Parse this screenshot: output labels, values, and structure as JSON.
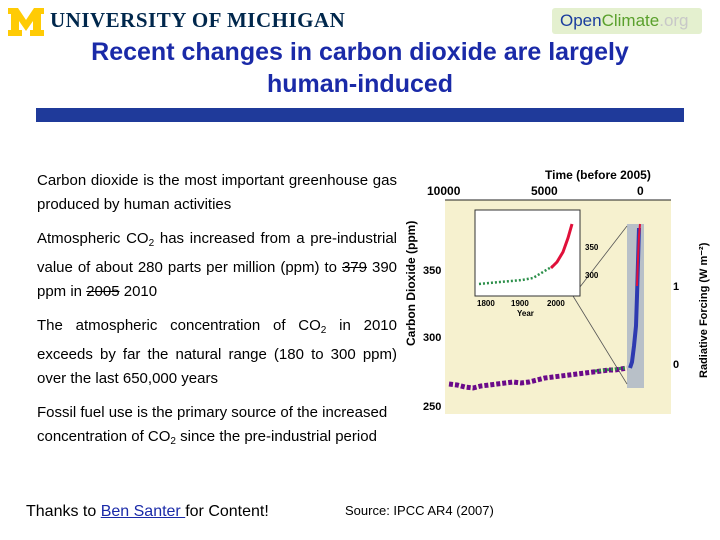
{
  "header": {
    "university": "UNIVERSITY OF MICHIGAN",
    "logo_letter": "M",
    "openclimate_a": "Open",
    "openclimate_b": "Climate",
    "openclimate_c": ".org"
  },
  "title": {
    "line1": "Recent changes in carbon dioxide are largely",
    "line2": "human-induced"
  },
  "bullets": {
    "b1": "Carbon dioxide is the most important greenhouse gas produced by human activities",
    "b2_pre": "Atmospheric CO",
    "b2_sub": "2",
    "b2_mid": " has increased from a pre-industrial value of about 280 parts per million (ppm) to ",
    "b2_strike1": "379",
    "b2_val1": " 390 ppm in ",
    "b2_strike2": "2005",
    "b2_val2": " 2010",
    "b3_pre": "The atmospheric concentration of CO",
    "b3_sub": "2",
    "b3_post": " in 2010 exceeds by far the natural range (180 to 300 ppm) over the last 650,000 years",
    "b4_pre": "Fossil fuel use is the primary source of the increased concentration of CO",
    "b4_sub": "2",
    "b4_post": " since the pre-industrial period"
  },
  "footer": {
    "thanks_pre": "Thanks to ",
    "thanks_link": "Ben Santer ",
    "thanks_post": "for Content!",
    "source": "Source: IPCC AR4 (2007)"
  },
  "chart": {
    "top_axis_label": "Time (before 2005)",
    "top_ticks": [
      "10000",
      "5000",
      "0"
    ],
    "left_label": "Carbon Dioxide (ppm)",
    "left_ticks": [
      "350",
      "300",
      "250"
    ],
    "right_label": "Radiative Forcing (W m⁻²)",
    "right_ticks": [
      "1",
      "0"
    ],
    "inset_x_ticks": [
      "1800",
      "1900",
      "2000"
    ],
    "inset_xlabel": "Year",
    "inset_y_ticks": [
      "350",
      "300"
    ],
    "colors": {
      "plot_bg": "#f6f1cf",
      "ice": "#6b0a8a",
      "green": "#2c8f4a",
      "recent": "#e0103a",
      "band": "#b8c0c8"
    }
  }
}
